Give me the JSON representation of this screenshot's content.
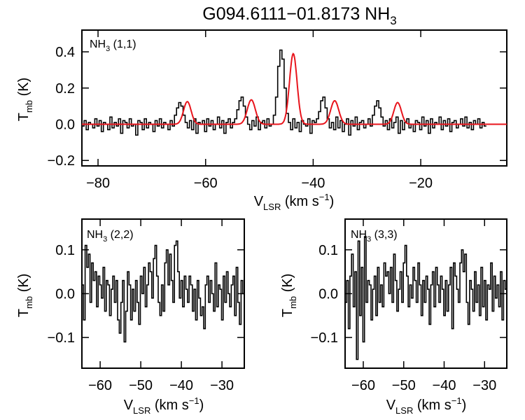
{
  "title": {
    "main": "G094.6111−01.8173 NH",
    "sub": "3"
  },
  "chart_data": [
    {
      "id": "nh3-11",
      "type": "line",
      "label": {
        "main": "NH",
        "sub": "3",
        "rest": " (1,1)"
      },
      "xlim": [
        -83,
        -4
      ],
      "ylim": [
        -0.23,
        0.52
      ],
      "xticks": [
        -80,
        -60,
        -40,
        -20
      ],
      "yticks": [
        -0.2,
        0.0,
        0.2,
        0.4
      ],
      "ytick_labels": [
        "−0.2",
        "0.0",
        "0.2",
        "0.4"
      ],
      "xtick_labels": [
        "−80",
        "−60",
        "−40",
        "−20"
      ],
      "xlabel": {
        "main": "V",
        "sub": "LSR",
        "rest": " (km s",
        "sup": "−1",
        "close": ")"
      },
      "ylabel": {
        "main": "T",
        "sub": "mb",
        "rest": " (K)"
      },
      "fit_color": "#e8141c",
      "fit_components": [
        {
          "center": -63.4,
          "amp": 0.125,
          "sigma": 0.7
        },
        {
          "center": -51.5,
          "amp": 0.135,
          "sigma": 0.75
        },
        {
          "center": -43.7,
          "amp": 0.39,
          "sigma": 0.7
        },
        {
          "center": -36.0,
          "amp": 0.13,
          "sigma": 0.75
        },
        {
          "center": -24.3,
          "amp": 0.12,
          "sigma": 0.7
        }
      ],
      "series": [
        {
          "name": "observed",
          "x0": -83.0,
          "dx": 0.4,
          "values": [
            -0.01,
            0.02,
            -0.03,
            0.01,
            0.0,
            -0.02,
            0.03,
            -0.01,
            0.02,
            -0.04,
            0.01,
            0.0,
            -0.03,
            0.04,
            -0.02,
            0.01,
            -0.01,
            0.03,
            -0.05,
            0.02,
            0.01,
            -0.02,
            0.03,
            -0.01,
            0.0,
            -0.06,
            0.02,
            0.01,
            -0.03,
            0.03,
            -0.02,
            0.01,
            0.0,
            -0.04,
            0.02,
            -0.01,
            0.03,
            -0.02,
            0.01,
            0.0,
            -0.03,
            0.02,
            -0.01,
            0.05,
            0.09,
            0.12,
            0.1,
            0.05,
            0.01,
            -0.02,
            0.02,
            -0.03,
            0.03,
            -0.05,
            0.01,
            0.0,
            0.02,
            -0.04,
            0.03,
            -0.01,
            0.02,
            -0.03,
            0.0,
            0.04,
            -0.02,
            0.02,
            -0.05,
            0.01,
            0.03,
            -0.02,
            0.01,
            0.03,
            0.08,
            0.13,
            0.15,
            0.1,
            0.04,
            0.0,
            -0.03,
            0.02,
            -0.01,
            0.04,
            -0.03,
            0.01,
            0.02,
            -0.02,
            0.03,
            -0.01,
            0.0,
            0.05,
            0.15,
            0.32,
            0.41,
            0.36,
            0.2,
            0.06,
            0.01,
            -0.03,
            0.03,
            -0.02,
            0.01,
            -0.04,
            0.02,
            0.0,
            -0.01,
            0.03,
            -0.05,
            0.02,
            0.01,
            0.03,
            0.07,
            0.13,
            0.15,
            0.09,
            0.03,
            -0.02,
            0.01,
            -0.03,
            0.04,
            -0.02,
            0.02,
            -0.04,
            0.0,
            0.03,
            -0.06,
            0.02,
            -0.01,
            0.04,
            -0.03,
            0.01,
            0.02,
            -0.02,
            0.0,
            0.03,
            -0.01,
            0.05,
            0.1,
            0.13,
            0.09,
            0.04,
            -0.01,
            0.02,
            -0.03,
            0.03,
            -0.02,
            0.01,
            0.04,
            -0.05,
            0.02,
            -0.03,
            0.01,
            0.03,
            -0.02,
            0.0,
            -0.04,
            0.02,
            0.01,
            -0.03,
            0.04,
            -0.01,
            0.02,
            -0.05,
            0.03,
            -0.02,
            0.01,
            0.0,
            0.04,
            -0.03,
            0.02,
            -0.01,
            0.03,
            -0.04,
            0.01,
            0.02,
            -0.02,
            0.0,
            0.03,
            -0.01,
            0.04,
            -0.02,
            0.01,
            -0.03,
            0.02,
            0.0,
            0.03,
            -0.02,
            0.01,
            -0.01
          ]
        }
      ]
    },
    {
      "id": "nh3-22",
      "type": "line",
      "label": {
        "main": "NH",
        "sub": "3",
        "rest": " (2,2)"
      },
      "xlim": [
        -64.5,
        -24.5
      ],
      "ylim": [
        -0.17,
        0.17
      ],
      "xticks": [
        -60,
        -50,
        -40,
        -30
      ],
      "yticks": [
        -0.1,
        0.0,
        0.1
      ],
      "ytick_labels": [
        "−0.1",
        "0.0",
        "0.1"
      ],
      "xtick_labels": [
        "−60",
        "−50",
        "−40",
        "−30"
      ],
      "xlabel": {
        "main": "V",
        "sub": "LSR",
        "rest": " (km s",
        "sup": "−1",
        "close": ")"
      },
      "ylabel": {
        "main": "T",
        "sub": "mb",
        "rest": " (K)"
      },
      "series": [
        {
          "name": "observed",
          "x0": -64.5,
          "dx": 0.4,
          "values": [
            0.02,
            -0.06,
            0.11,
            0.06,
            0.09,
            -0.02,
            0.07,
            0.03,
            0.05,
            -0.03,
            0.04,
            0.02,
            -0.01,
            0.06,
            -0.04,
            0.03,
            0.02,
            -0.05,
            0.01,
            0.04,
            -0.02,
            0.03,
            -0.06,
            -0.09,
            -0.02,
            0.03,
            -0.11,
            -0.04,
            0.05,
            0.02,
            -0.06,
            0.01,
            -0.04,
            0.03,
            -0.02,
            -0.07,
            0.04,
            0.0,
            0.06,
            -0.03,
            0.02,
            0.07,
            0.05,
            -0.01,
            0.08,
            0.11,
            0.04,
            -0.02,
            -0.05,
            0.02,
            -0.04,
            0.07,
            0.1,
            0.02,
            0.09,
            0.03,
            -0.02,
            0.11,
            0.12,
            0.05,
            -0.01,
            0.03,
            -0.03,
            0.04,
            0.01,
            -0.02,
            0.04,
            0.02,
            -0.04,
            0.01,
            -0.06,
            0.03,
            -0.01,
            -0.05,
            -0.03,
            -0.08,
            0.02,
            0.04,
            -0.02,
            0.03,
            0.0,
            -0.04,
            0.07,
            -0.03,
            0.02,
            0.01,
            -0.06,
            0.04,
            -0.02,
            0.05,
            0.0,
            -0.03,
            0.02,
            0.04,
            -0.05,
            0.06,
            -0.02,
            -0.07,
            0.03,
            0.0,
            -0.04,
            0.02,
            0.05
          ]
        }
      ]
    },
    {
      "id": "nh3-33",
      "type": "line",
      "label": {
        "main": "NH",
        "sub": "3",
        "rest": " (3,3)"
      },
      "xlim": [
        -64.5,
        -24.5
      ],
      "ylim": [
        -0.17,
        0.17
      ],
      "xticks": [
        -60,
        -50,
        -40,
        -30
      ],
      "yticks": [
        -0.1,
        0.0,
        0.1
      ],
      "ytick_labels": [
        "−0.1",
        "0.0",
        "0.1"
      ],
      "xtick_labels": [
        "−60",
        "−50",
        "−40",
        "−30"
      ],
      "xlabel": {
        "main": "V",
        "sub": "LSR",
        "rest": " (km s",
        "sup": "−1",
        "close": ")"
      },
      "ylabel": {
        "main": "T",
        "sub": "mb",
        "rest": " (K)"
      },
      "series": [
        {
          "name": "observed",
          "x0": -64.5,
          "dx": 0.4,
          "values": [
            -0.02,
            0.03,
            -0.08,
            0.04,
            0.09,
            -0.03,
            0.05,
            -0.15,
            0.12,
            -0.05,
            0.06,
            -0.11,
            0.13,
            -0.02,
            0.03,
            0.02,
            -0.06,
            0.01,
            0.04,
            -0.05,
            0.06,
            -0.02,
            0.02,
            -0.03,
            0.07,
            0.04,
            0.05,
            0.0,
            0.06,
            -0.02,
            0.09,
            0.03,
            -0.04,
            0.01,
            0.05,
            -0.02,
            0.07,
            0.11,
            0.04,
            -0.03,
            0.02,
            -0.01,
            0.06,
            0.03,
            -0.02,
            0.07,
            0.02,
            -0.05,
            0.03,
            -0.02,
            0.04,
            0.01,
            -0.07,
            0.02,
            0.05,
            -0.03,
            0.06,
            0.02,
            -0.02,
            0.04,
            0.01,
            -0.05,
            0.03,
            -0.04,
            0.02,
            0.06,
            -0.08,
            0.07,
            0.04,
            0.01,
            -0.02,
            0.07,
            0.1,
            0.05,
            0.09,
            -0.02,
            -0.07,
            0.03,
            0.01,
            -0.04,
            0.05,
            -0.02,
            0.02,
            -0.05,
            0.06,
            -0.03,
            0.03,
            -0.06,
            0.02,
            0.01,
            0.07,
            -0.04,
            0.04,
            -0.01,
            0.02,
            -0.03,
            0.05,
            -0.06,
            0.03,
            0.01,
            -0.02,
            0.06,
            -0.04,
            0.02
          ]
        }
      ]
    }
  ]
}
